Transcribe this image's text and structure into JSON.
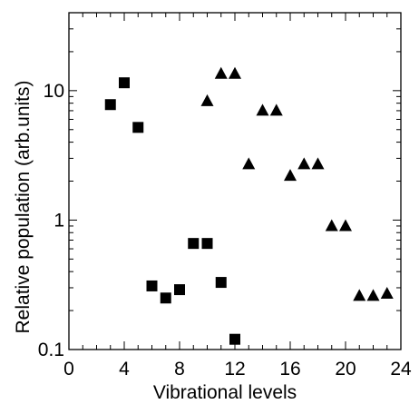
{
  "chart_data": {
    "type": "scatter",
    "xlabel": "Vibrational levels",
    "ylabel": "Relative population (arb.units)",
    "xlim": [
      0,
      24
    ],
    "ylim": [
      0.1,
      40
    ],
    "yscale": "log",
    "grid": false,
    "x_ticks": [
      {
        "value": 0,
        "label": "0"
      },
      {
        "value": 4,
        "label": "4"
      },
      {
        "value": 8,
        "label": "8"
      },
      {
        "value": 12,
        "label": "12"
      },
      {
        "value": 16,
        "label": "16"
      },
      {
        "value": 20,
        "label": "20"
      },
      {
        "value": 24,
        "label": "24"
      }
    ],
    "y_ticks": [
      {
        "value": 0.1,
        "label": "0.1"
      },
      {
        "value": 1,
        "label": "1"
      },
      {
        "value": 10,
        "label": "10"
      }
    ],
    "series": [
      {
        "marker": "square",
        "color": "#000000",
        "points": [
          {
            "x": 3,
            "y": 7.8
          },
          {
            "x": 4,
            "y": 11.5
          },
          {
            "x": 5,
            "y": 5.2
          },
          {
            "x": 6,
            "y": 0.31
          },
          {
            "x": 7,
            "y": 0.25
          },
          {
            "x": 8,
            "y": 0.29
          },
          {
            "x": 9,
            "y": 0.66
          },
          {
            "x": 10,
            "y": 0.66
          },
          {
            "x": 11,
            "y": 0.33
          },
          {
            "x": 12,
            "y": 0.12
          }
        ]
      },
      {
        "marker": "triangle",
        "color": "#000000",
        "points": [
          {
            "x": 10,
            "y": 8.3
          },
          {
            "x": 11,
            "y": 13.5
          },
          {
            "x": 12,
            "y": 13.5
          },
          {
            "x": 13,
            "y": 2.7
          },
          {
            "x": 14,
            "y": 7.0
          },
          {
            "x": 15,
            "y": 7.0
          },
          {
            "x": 16,
            "y": 2.2
          },
          {
            "x": 17,
            "y": 2.7
          },
          {
            "x": 18,
            "y": 2.7
          },
          {
            "x": 19,
            "y": 0.9
          },
          {
            "x": 20,
            "y": 0.9
          },
          {
            "x": 21,
            "y": 0.26
          },
          {
            "x": 22,
            "y": 0.26
          },
          {
            "x": 23,
            "y": 0.27
          }
        ]
      }
    ]
  }
}
